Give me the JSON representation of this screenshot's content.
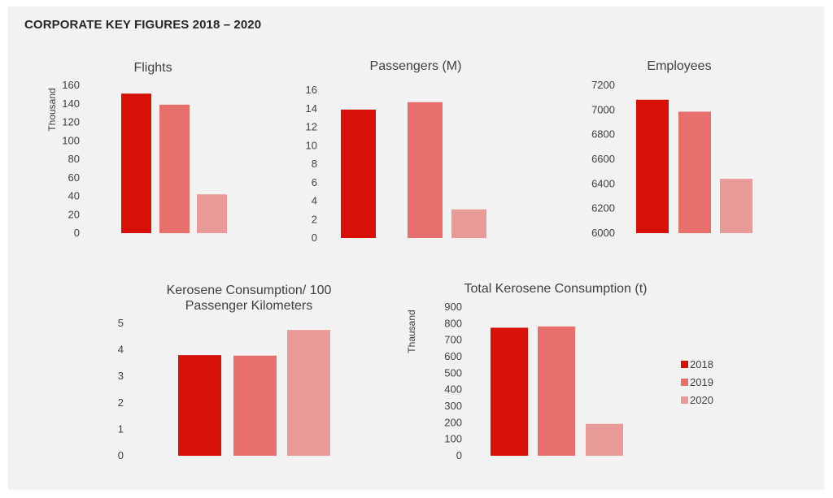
{
  "title": "CORPORATE KEY FIGURES 2018 – 2020",
  "colors": {
    "2018": "#d81108",
    "2019": "#e8706c",
    "2020": "#e89a98"
  },
  "legend": [
    "2018",
    "2019",
    "2020"
  ],
  "chart_data": [
    {
      "type": "bar",
      "title": [
        "Flights"
      ],
      "ylabel": "Thousand",
      "categories": [
        "2018",
        "2019",
        "2020"
      ],
      "values": [
        151,
        139,
        42
      ],
      "ylim": [
        0,
        160
      ],
      "ticks": [
        0,
        20,
        40,
        60,
        80,
        100,
        120,
        140,
        160
      ],
      "grid": false
    },
    {
      "type": "bar",
      "title": [
        "Passengers (M)"
      ],
      "ylabel": "",
      "categories": [
        "2018",
        "2019",
        "2020"
      ],
      "values": [
        13.9,
        14.7,
        3.1
      ],
      "ylim": [
        0,
        16
      ],
      "ticks": [
        0,
        2,
        4,
        6,
        8,
        10,
        12,
        14,
        16
      ],
      "grid": false
    },
    {
      "type": "bar",
      "title": [
        "Employees"
      ],
      "ylabel": "",
      "categories": [
        "2018",
        "2019",
        "2020"
      ],
      "values": [
        7083,
        6986,
        6441
      ],
      "ylim": [
        6000,
        7200
      ],
      "ticks": [
        6000,
        6200,
        6400,
        6600,
        6800,
        7000,
        7200
      ],
      "grid": false
    },
    {
      "type": "bar",
      "title": [
        "Kerosene Consumption/ 100",
        "Passenger Kilometers"
      ],
      "ylabel": "",
      "categories": [
        "2018",
        "2019",
        "2020"
      ],
      "values": [
        3.8,
        3.78,
        4.75
      ],
      "ylim": [
        0,
        5
      ],
      "ticks": [
        0,
        1,
        2,
        3,
        4,
        5
      ],
      "grid": false
    },
    {
      "type": "bar",
      "title": [
        "Total Kerosene Consumption (t)"
      ],
      "ylabel": "Thausand",
      "categories": [
        "2018",
        "2019",
        "2020"
      ],
      "values": [
        775,
        783,
        193
      ],
      "ylim": [
        0,
        900
      ],
      "ticks": [
        0,
        100,
        200,
        300,
        400,
        500,
        600,
        700,
        800,
        900
      ],
      "grid": false,
      "legend_position": "right"
    }
  ]
}
